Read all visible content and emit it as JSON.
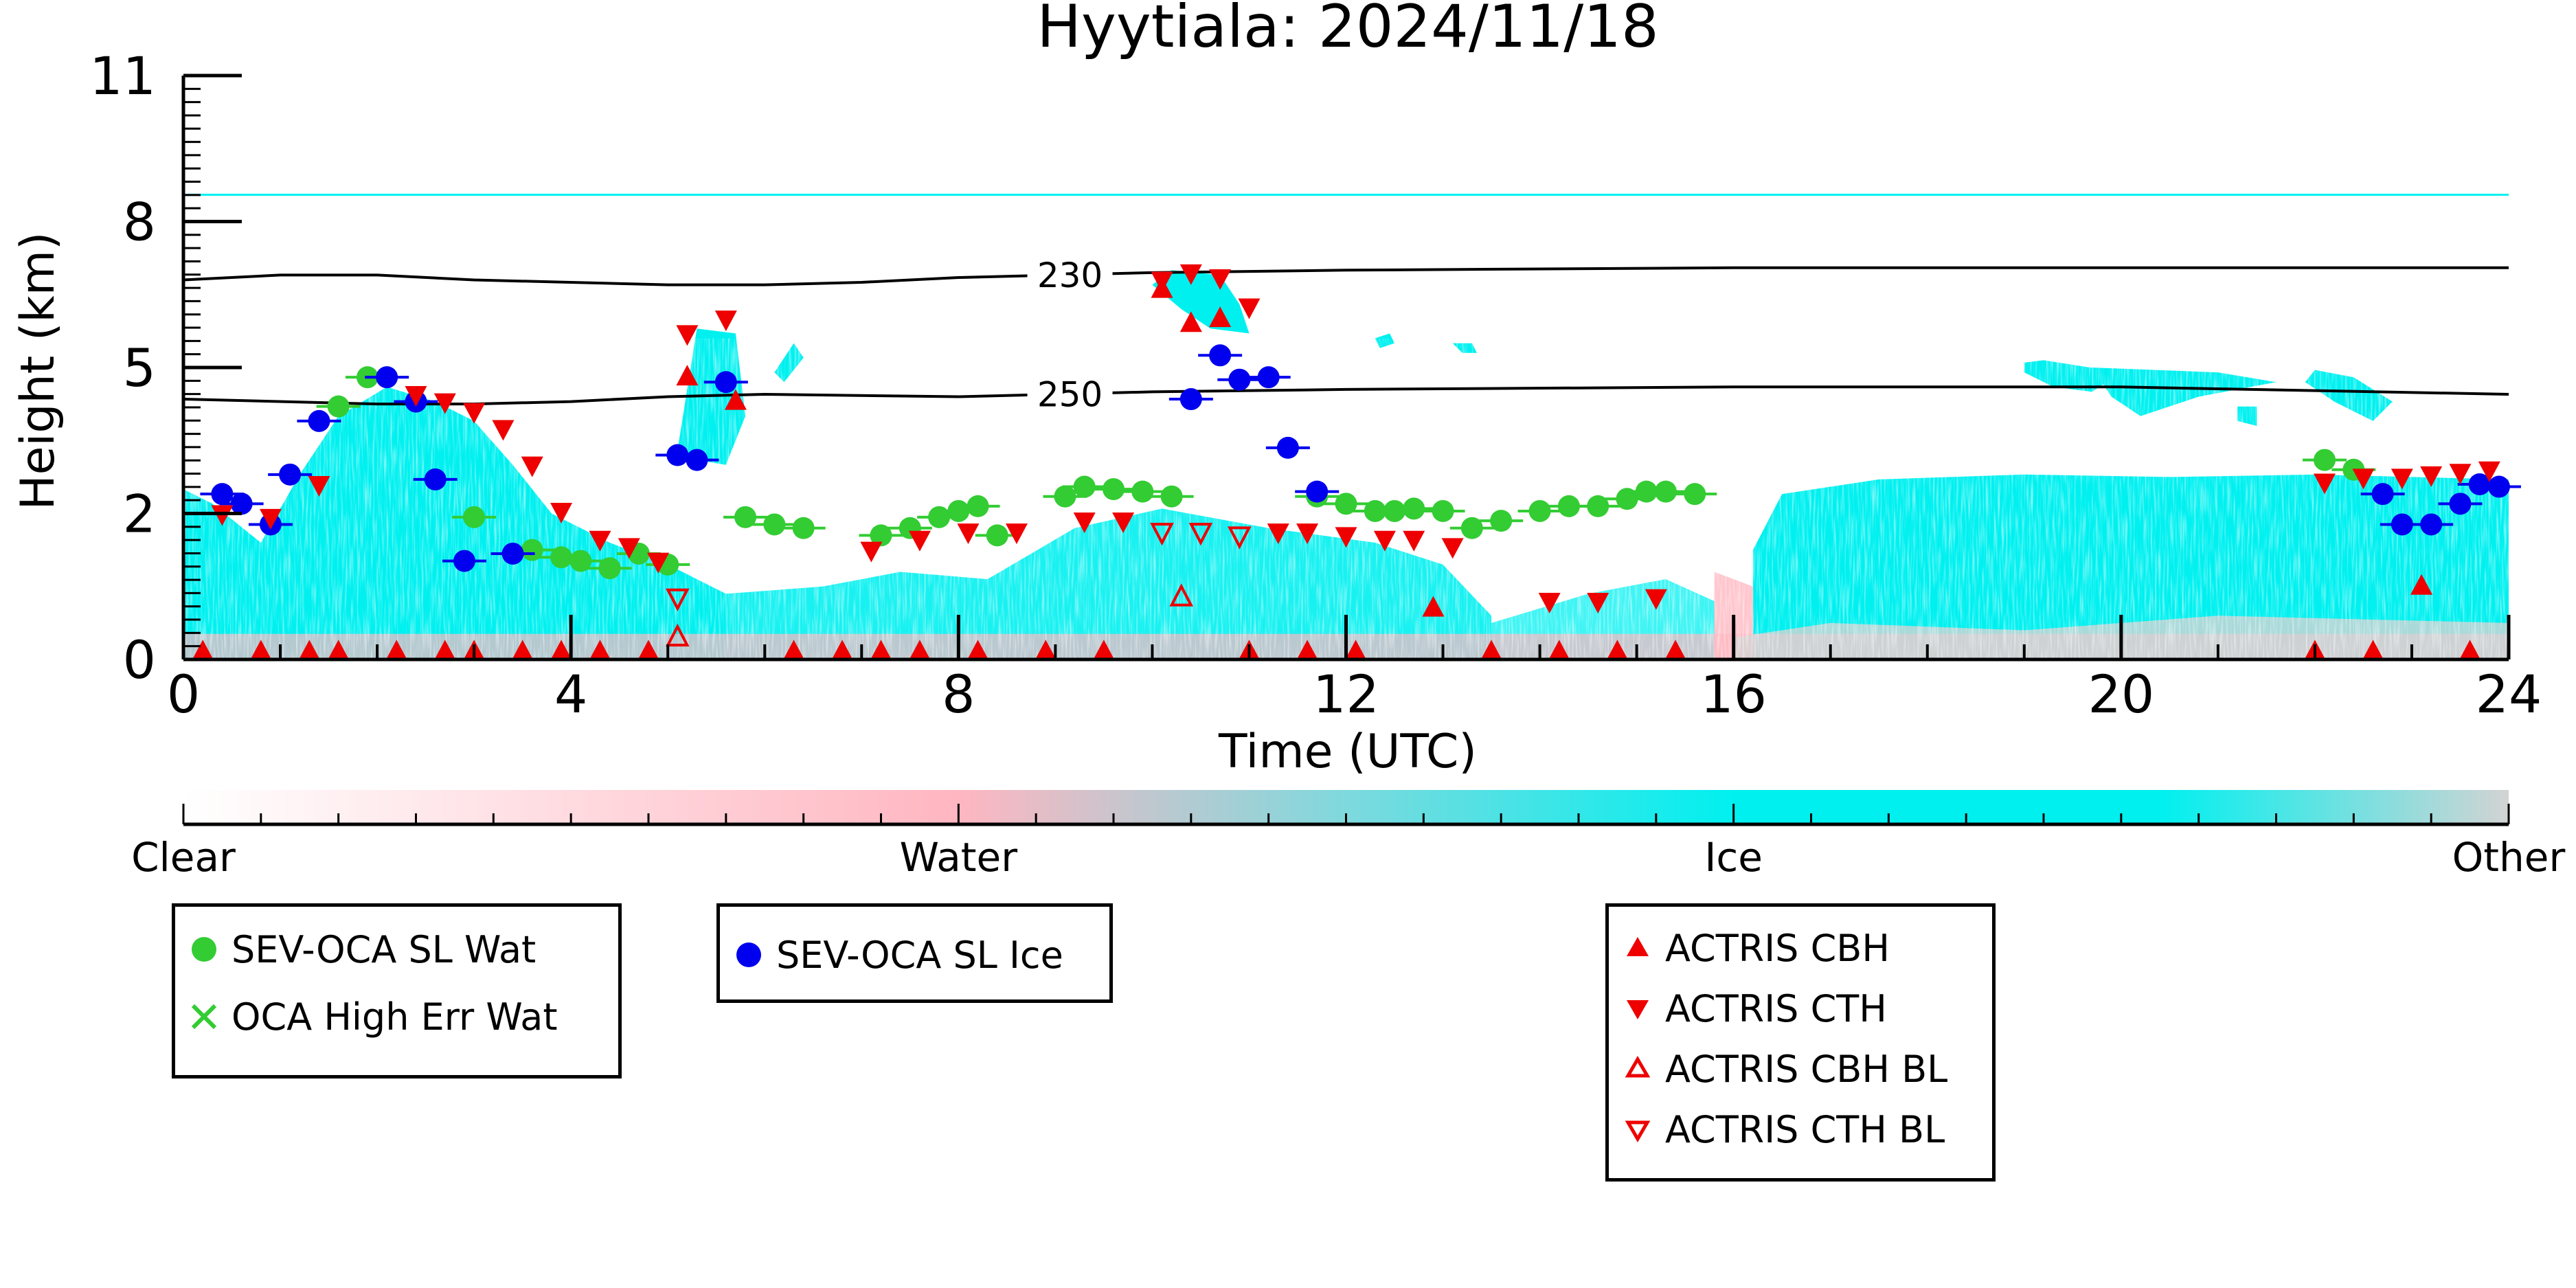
{
  "chart_data": {
    "type": "scatter",
    "title": "Hyytiala: 2024/11/18",
    "xlabel": "Time (UTC)",
    "ylabel": "Height (km)",
    "xlim": [
      0,
      24
    ],
    "ylim_ticks": [
      "0",
      "2",
      "5",
      "8",
      "11"
    ],
    "x_ticks": [
      0,
      4,
      8,
      12,
      16,
      20,
      24
    ],
    "y_ticks_km": [
      0,
      2,
      5,
      8,
      11
    ],
    "grid": false,
    "contours": [
      {
        "label": "230",
        "x": [
          0,
          1,
          2,
          3,
          5,
          6,
          7,
          8,
          9,
          10,
          12,
          16,
          20,
          24
        ],
        "y": [
          6.8,
          6.9,
          6.9,
          6.8,
          6.7,
          6.7,
          6.75,
          6.85,
          6.9,
          6.95,
          7.0,
          7.05,
          7.05,
          7.05
        ]
      },
      {
        "label": "250",
        "x": [
          0,
          2,
          3,
          4,
          5,
          6,
          8,
          10,
          12,
          16,
          20,
          24
        ],
        "y": [
          4.35,
          4.25,
          4.25,
          4.3,
          4.4,
          4.45,
          4.4,
          4.5,
          4.55,
          4.6,
          4.6,
          4.45
        ]
      }
    ],
    "series": [
      {
        "name": "SEV-OCA SL Wat",
        "color": "#33cc33",
        "marker": "circle",
        "x": [
          1.6,
          1.9,
          3.0,
          3.6,
          3.9,
          4.1,
          4.4,
          4.7,
          5.0,
          5.8,
          6.1,
          6.4,
          7.2,
          7.5,
          7.8,
          8.0,
          8.2,
          8.4,
          9.1,
          9.3,
          9.6,
          9.9,
          10.2,
          11.7,
          12.0,
          12.3,
          12.5,
          12.7,
          13.0,
          13.3,
          13.6,
          14.0,
          14.3,
          14.6,
          14.9,
          15.1,
          15.3,
          15.6,
          22.1,
          22.4
        ],
        "y": [
          4.2,
          4.8,
          1.95,
          1.5,
          1.4,
          1.35,
          1.25,
          1.45,
          1.3,
          1.95,
          1.85,
          1.8,
          1.7,
          1.8,
          1.95,
          2.05,
          2.15,
          1.7,
          2.35,
          2.55,
          2.5,
          2.45,
          2.35,
          2.35,
          2.2,
          2.05,
          2.05,
          2.1,
          2.05,
          1.8,
          1.9,
          2.05,
          2.15,
          2.15,
          2.3,
          2.45,
          2.45,
          2.4,
          3.1,
          2.9
        ]
      },
      {
        "name": "SEV-OCA SL Ice",
        "color": "#0000ee",
        "marker": "circle",
        "x": [
          0.4,
          0.6,
          0.9,
          1.1,
          1.4,
          2.1,
          2.4,
          2.6,
          2.9,
          3.4,
          5.1,
          5.3,
          5.6,
          10.4,
          10.7,
          10.9,
          11.2,
          11.4,
          11.7,
          22.7,
          22.9,
          23.2,
          23.5,
          23.7,
          23.9
        ],
        "y": [
          2.4,
          2.2,
          1.85,
          2.8,
          3.9,
          4.8,
          4.3,
          2.7,
          1.35,
          1.45,
          3.2,
          3.1,
          4.7,
          4.35,
          5.25,
          4.75,
          4.8,
          3.35,
          2.45,
          2.4,
          1.85,
          1.85,
          2.2,
          2.6,
          2.55
        ]
      },
      {
        "name": "ACTRIS CBH",
        "color": "#ee0000",
        "marker": "triangle-up",
        "x": [
          0.2,
          0.8,
          1.3,
          1.6,
          2.2,
          2.7,
          3.0,
          3.5,
          3.9,
          4.3,
          4.8,
          5.2,
          5.7,
          6.3,
          6.8,
          7.2,
          7.6,
          8.2,
          8.9,
          9.5,
          10.1,
          10.4,
          10.7,
          11.0,
          11.6,
          12.1,
          12.9,
          13.5,
          14.2,
          14.8,
          15.4,
          22.0,
          22.6,
          23.1,
          23.6
        ],
        "y": [
          0.1,
          0.1,
          0.1,
          0.1,
          0.1,
          0.1,
          0.1,
          0.1,
          0.1,
          0.1,
          0.1,
          4.8,
          4.3,
          0.1,
          0.1,
          0.1,
          0.1,
          0.1,
          0.1,
          0.1,
          6.6,
          5.9,
          6.0,
          0.1,
          0.1,
          0.1,
          0.7,
          0.1,
          0.1,
          0.1,
          0.1,
          0.1,
          0.1,
          1.0,
          0.1
        ]
      },
      {
        "name": "ACTRIS CTH",
        "color": "#ee0000",
        "marker": "triangle-down",
        "x": [
          0.4,
          0.9,
          1.4,
          2.4,
          2.7,
          3.0,
          3.3,
          3.6,
          3.9,
          4.3,
          4.6,
          4.9,
          5.2,
          5.6,
          7.1,
          7.6,
          8.1,
          8.6,
          9.3,
          9.7,
          10.1,
          10.4,
          10.7,
          11.0,
          11.3,
          11.6,
          12.0,
          12.4,
          12.7,
          13.1,
          14.1,
          14.6,
          15.2,
          22.1,
          22.5,
          22.9,
          23.2,
          23.5,
          23.8
        ],
        "y": [
          2.0,
          1.95,
          2.6,
          4.45,
          4.3,
          4.1,
          3.75,
          3.0,
          2.05,
          1.65,
          1.55,
          1.35,
          5.7,
          6.0,
          1.5,
          1.65,
          1.75,
          1.75,
          1.9,
          1.9,
          6.8,
          6.95,
          6.85,
          6.25,
          1.75,
          1.75,
          1.7,
          1.65,
          1.65,
          1.55,
          0.8,
          0.8,
          0.85,
          2.65,
          2.75,
          2.75,
          2.8,
          2.85,
          2.9
        ]
      },
      {
        "name": "ACTRIS CBH BL",
        "color": "#ee0000",
        "marker": "triangle-up-open",
        "x": [
          5.1,
          10.3
        ],
        "y": [
          0.3,
          0.85
        ]
      },
      {
        "name": "ACTRIS CTH BL",
        "color": "#ee0000",
        "marker": "triangle-down-open",
        "x": [
          5.1,
          10.1,
          10.5,
          10.9
        ],
        "y": [
          0.85,
          1.75,
          1.75,
          1.7
        ]
      }
    ],
    "colorbar": {
      "labels": [
        "Clear",
        "Water",
        "Ice",
        "Other"
      ],
      "colors": [
        "#ffffff",
        "#ffb6c1",
        "#00f0f0",
        "#d3d3d3"
      ]
    },
    "colors": {
      "ice": "#00f0f0",
      "water": "#ffb6c1",
      "other": "#d3d3d3",
      "wat_marker": "#33cc33",
      "ice_marker": "#0000ee",
      "actris": "#ee0000"
    }
  },
  "legend": {
    "box1": [
      {
        "label": "SEV-OCA SL Wat",
        "icon": "green-circle"
      },
      {
        "label": "OCA High Err Wat",
        "icon": "green-x"
      }
    ],
    "box2": [
      {
        "label": "SEV-OCA SL Ice",
        "icon": "blue-circle"
      }
    ],
    "box3": [
      {
        "label": "ACTRIS CBH",
        "icon": "red-triangle-up"
      },
      {
        "label": "ACTRIS CTH",
        "icon": "red-triangle-down"
      },
      {
        "label": "ACTRIS CBH BL",
        "icon": "red-triangle-up-open"
      },
      {
        "label": "ACTRIS CTH BL",
        "icon": "red-triangle-down-open"
      }
    ]
  }
}
